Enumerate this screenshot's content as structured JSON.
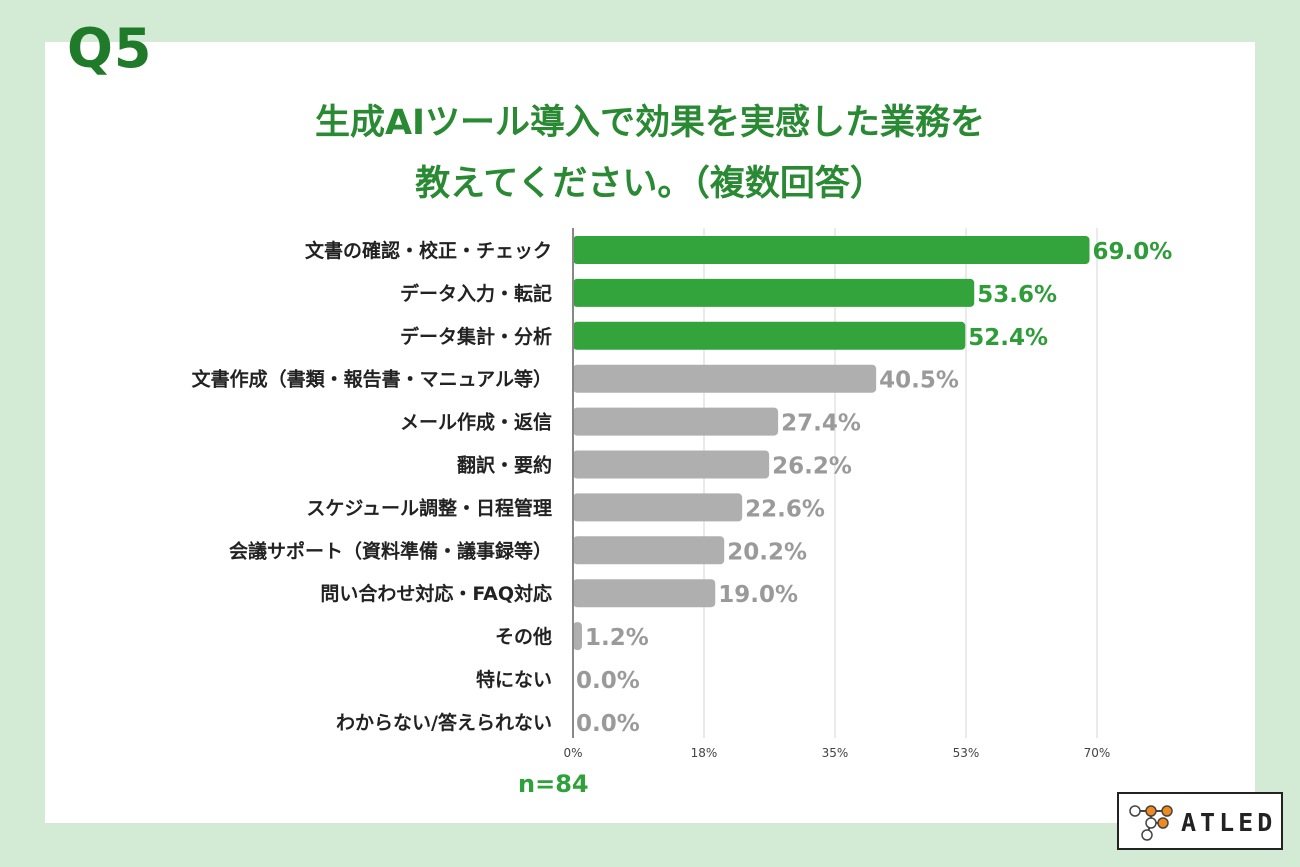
{
  "question": {
    "number": "Q5"
  },
  "title": {
    "line1": "生成AIツール導入で効果を実感した業務を",
    "line2": "教えてください。（複数回答）"
  },
  "sample": {
    "label": "n=84"
  },
  "logo": {
    "text": "ATLED",
    "icon": "atled-molecule-logo"
  },
  "colors": {
    "highlight": "#33a33b",
    "highlight_label": "#2e9c38",
    "normal": "#afafaf",
    "normal_label": "#9a9a9a",
    "category_text": "#222222",
    "axis": "#888888",
    "grid": "#d6d6d6"
  },
  "chart_data": {
    "type": "bar",
    "orientation": "horizontal",
    "categories": [
      "文書の確認・校正・チェック",
      "データ入力・転記",
      "データ集計・分析",
      "文書作成（書類・報告書・マニュアル等）",
      "メール作成・返信",
      "翻訳・要約",
      "スケジュール調整・日程管理",
      "会議サポート（資料準備・議事録等）",
      "問い合わせ対応・FAQ対応",
      "その他",
      "特にない",
      "わからない/答えられない"
    ],
    "values": [
      69.0,
      53.6,
      52.4,
      40.5,
      27.4,
      26.2,
      22.6,
      20.2,
      19.0,
      1.2,
      0.0,
      0.0
    ],
    "value_labels": [
      "69.0%",
      "53.6%",
      "52.4%",
      "40.5%",
      "27.4%",
      "26.2%",
      "22.6%",
      "20.2%",
      "19.0%",
      "1.2%",
      "0.0%",
      "0.0%"
    ],
    "highlighted": [
      true,
      true,
      true,
      false,
      false,
      false,
      false,
      false,
      false,
      false,
      false,
      false
    ],
    "xticks": [
      0,
      17.5,
      35,
      52.5,
      70
    ],
    "xtick_labels": [
      "0%",
      "18%",
      "35%",
      "53%",
      "70%"
    ],
    "xlim": [
      0,
      70
    ],
    "grid": true,
    "unit": "%"
  }
}
